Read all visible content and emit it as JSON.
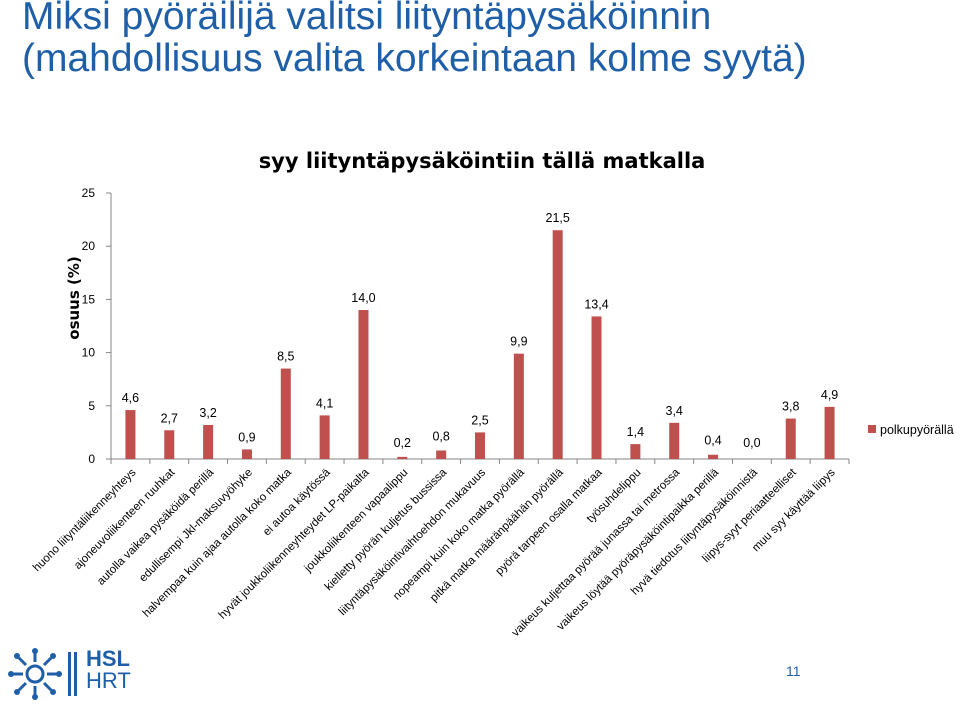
{
  "slide": {
    "title_line1": "Miksi pyöräilijä valitsi liityntäpysäköinnin",
    "title_line2": "(mahdollisuus valita korkeintaan kolme syytä)",
    "page_number": "11",
    "logo_line1": "HSL",
    "logo_line2": "HRT",
    "title_color": "#1f5fa8"
  },
  "chart_data": {
    "type": "bar",
    "title": "syy liityntäpysäköintiin tällä matkalla",
    "ylabel": "osuus (%)",
    "xlabel": "",
    "ylim": [
      0,
      25
    ],
    "yticks": [
      "0",
      "5",
      "10",
      "15",
      "20",
      "25"
    ],
    "grid": false,
    "legend_position": "right",
    "bar_color": "#c0504d",
    "categories": [
      "huono liityntäliikenneyhteys",
      "ajoneuvoliikenteen ruuhkat",
      "autolla vaikea pysäköidä perillä",
      "edullisempi Jkl-maksuvyöhyke",
      "halvempaa kuin ajaa autolla koko matka",
      "ei autoa käytössä",
      "hyvät joukkoliikenneyhteydet LP-paikalta",
      "joukkoliikenteen vapaalippu",
      "kielletty pyörän kuljetus bussissa",
      "liityntäpysäköintivaihtoehdon mukavuus",
      "nopeampi kuin koko matka pyörällä",
      "pitkä matka määränpäähän pyörällä",
      "pyörä tarpeen osalla matkaa",
      "työsuhdelippu",
      "vaikeus kuljettaa pyörää junassa tai metrossa",
      "vaikeus löytää pyöräpysäköintipaikka perillä",
      "hyvä tiedotus liityntäpysäköinnistä",
      "liipys-syyt periaatteelliset",
      "muu syy käyttää liipys"
    ],
    "series": [
      {
        "name": "polkupyörällä",
        "values": [
          4.6,
          2.7,
          3.2,
          0.9,
          8.5,
          4.1,
          14.0,
          0.2,
          0.8,
          2.5,
          9.9,
          21.5,
          13.4,
          1.4,
          3.4,
          0.4,
          0.0,
          3.8,
          4.9
        ],
        "labels": [
          "4,6",
          "2,7",
          "3,2",
          "0,9",
          "8,5",
          "4,1",
          "14,0",
          "0,2",
          "0,8",
          "2,5",
          "9,9",
          "21,5",
          "13,4",
          "1,4",
          "3,4",
          "0,4",
          "0,0",
          "3,8",
          "4,9"
        ]
      }
    ]
  }
}
